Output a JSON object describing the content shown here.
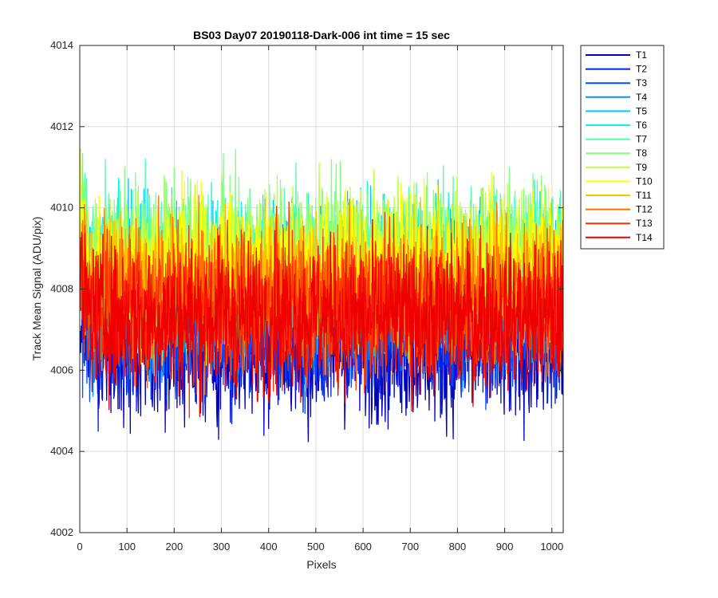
{
  "chart_data": {
    "type": "line",
    "title": "BS03 Day07 20190118-Dark-006 int time = 15 sec",
    "xlabel": "Pixels",
    "ylabel": "Track Mean Signal (ADU/pix)",
    "xlim": [
      0,
      1024
    ],
    "ylim": [
      4002,
      4014
    ],
    "xticks": [
      0,
      100,
      200,
      300,
      400,
      500,
      600,
      700,
      800,
      900,
      1000
    ],
    "yticks": [
      4002,
      4004,
      4006,
      4008,
      4010,
      4012,
      4014
    ],
    "grid": true,
    "legend_position": "outside-right",
    "x": {
      "start": 1,
      "end": 1024
    },
    "series": [
      {
        "name": "T1",
        "color": "#0000BF",
        "mean": 4006.5,
        "spread": 0.9
      },
      {
        "name": "T2",
        "color": "#0020DF",
        "mean": 4006.9,
        "spread": 0.9
      },
      {
        "name": "T3",
        "color": "#0050FF",
        "mean": 4007.3,
        "spread": 0.9
      },
      {
        "name": "T4",
        "color": "#0090FF",
        "mean": 4007.8,
        "spread": 0.9
      },
      {
        "name": "T5",
        "color": "#00C8FF",
        "mean": 4008.3,
        "spread": 0.9
      },
      {
        "name": "T6",
        "color": "#10F0F0",
        "mean": 4008.5,
        "spread": 0.9
      },
      {
        "name": "T7",
        "color": "#50FFB0",
        "mean": 4008.7,
        "spread": 0.9
      },
      {
        "name": "T8",
        "color": "#80FF80",
        "mean": 4008.8,
        "spread": 0.9
      },
      {
        "name": "T9",
        "color": "#C0FF40",
        "mean": 4008.7,
        "spread": 0.9
      },
      {
        "name": "T10",
        "color": "#FFFF00",
        "mean": 4008.5,
        "spread": 0.9
      },
      {
        "name": "T11",
        "color": "#FFBF00",
        "mean": 4008.1,
        "spread": 0.9
      },
      {
        "name": "T12",
        "color": "#FF7000",
        "mean": 4007.8,
        "spread": 0.9
      },
      {
        "name": "T13",
        "color": "#FF3000",
        "mean": 4007.5,
        "spread": 0.9
      },
      {
        "name": "T14",
        "color": "#EE0000",
        "mean": 4007.3,
        "spread": 0.9
      }
    ]
  }
}
